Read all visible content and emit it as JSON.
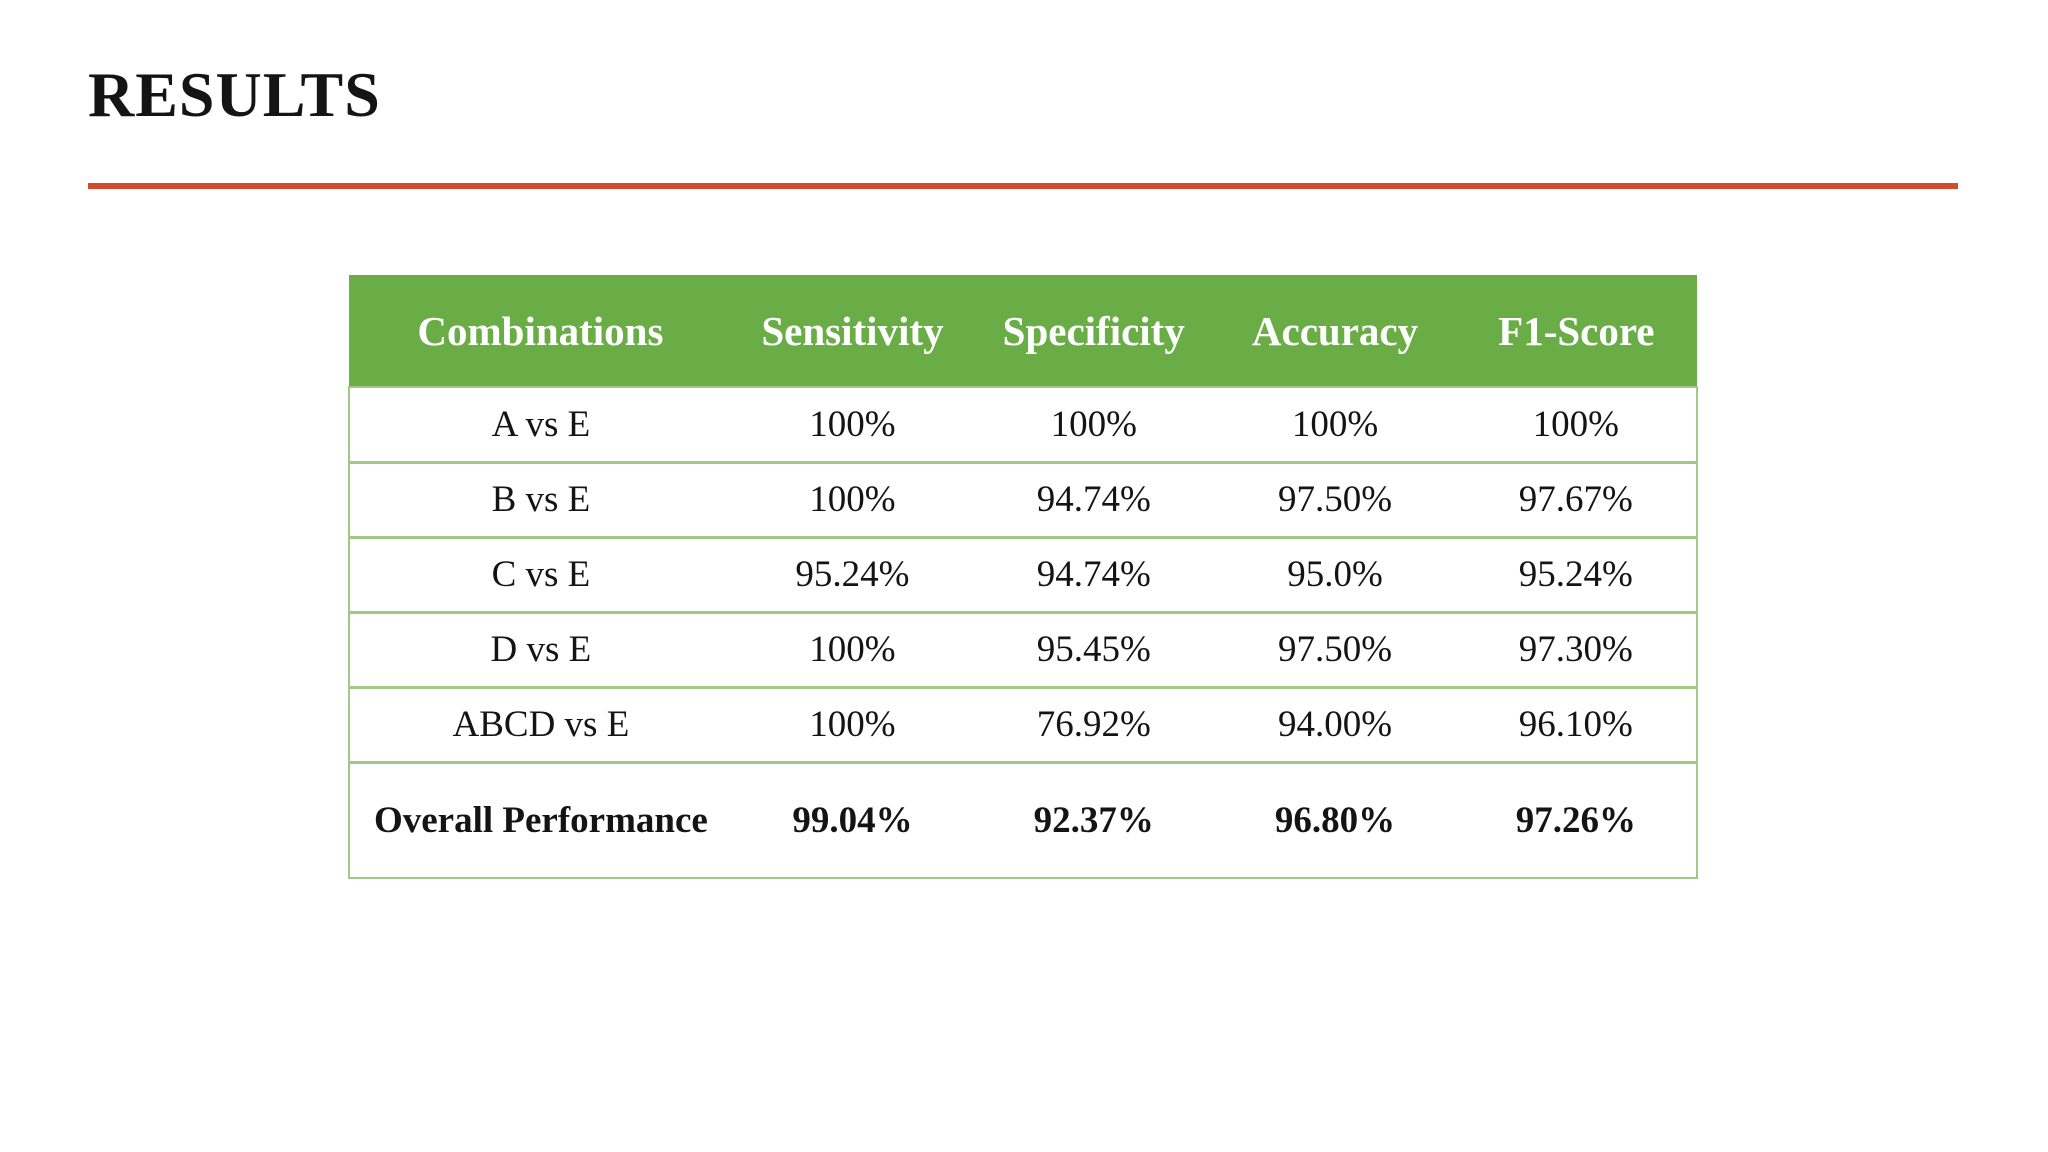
{
  "slide": {
    "title": "RESULTS",
    "accent_color": "#d14c2c",
    "header_bg_color": "#6aad46",
    "table_border_color": "#a3c886"
  },
  "table": {
    "columns": [
      "Combinations",
      "Sensitivity",
      "Specificity",
      "Accuracy",
      "F1-Score"
    ],
    "rows": [
      {
        "combination": "A vs E",
        "values": [
          "100%",
          "100%",
          "100%",
          "100%"
        ],
        "bold": false
      },
      {
        "combination": "B vs E",
        "values": [
          "100%",
          "94.74%",
          "97.50%",
          "97.67%"
        ],
        "bold": false
      },
      {
        "combination": "C vs E",
        "values": [
          "95.24%",
          "94.74%",
          "95.0%",
          "95.24%"
        ],
        "bold": false
      },
      {
        "combination": "D vs E",
        "values": [
          "100%",
          "95.45%",
          "97.50%",
          "97.30%"
        ],
        "bold": false
      },
      {
        "combination": "ABCD vs E",
        "values": [
          "100%",
          "76.92%",
          "94.00%",
          "96.10%"
        ],
        "bold": false
      },
      {
        "combination": "Overall Performance",
        "values": [
          "99.04%",
          "92.37%",
          "96.80%",
          "97.26%"
        ],
        "bold": true
      }
    ]
  }
}
